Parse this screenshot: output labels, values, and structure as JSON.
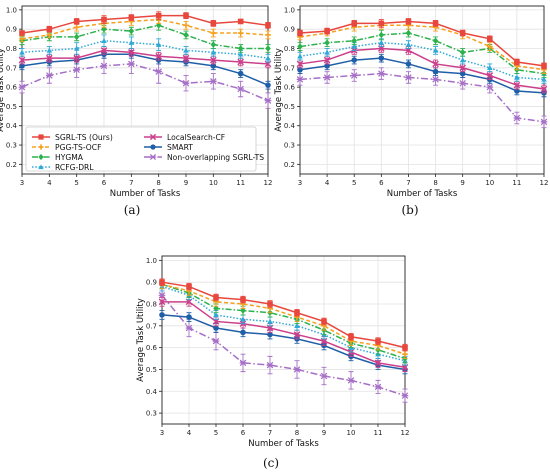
{
  "legend": [
    {
      "name": "SGRL-TS (Ours)",
      "color": "#e8473d",
      "dash": "",
      "marker": "square"
    },
    {
      "name": "PGG-TS-OCF",
      "color": "#f5a01e",
      "dash": "4,2.5",
      "marker": "plus"
    },
    {
      "name": "HYGMA",
      "color": "#2bb24c",
      "dash": "6,2,1.5,2",
      "marker": "diamond"
    },
    {
      "name": "RCFG-DRL",
      "color": "#2fa8d6",
      "dash": "1.5,1.8",
      "marker": "triangle"
    },
    {
      "name": "LocalSearch-CF",
      "color": "#cc3f8a",
      "dash": "",
      "marker": "x"
    },
    {
      "name": "SMART",
      "color": "#1f5fa8",
      "dash": "",
      "marker": "circle"
    },
    {
      "name": "Non-overlapping SGRL-TS",
      "color": "#a66fc7",
      "dash": "7,2.5,1.5,2.5",
      "marker": "star"
    }
  ],
  "chart_data": [
    {
      "type": "line",
      "caption": "(a)",
      "xlabel": "Number of Tasks",
      "ylabel": "Average Task Utility",
      "xlim": [
        3,
        12
      ],
      "ylim": [
        0.15,
        1.02
      ],
      "x": [
        3,
        4,
        5,
        6,
        7,
        8,
        9,
        10,
        11,
        12
      ],
      "xticks": [
        "3",
        "4",
        "5",
        "6",
        "7",
        "8",
        "9",
        "10",
        "11",
        "12"
      ],
      "yticks": [
        "0.2",
        "0.3",
        "0.4",
        "0.5",
        "0.6",
        "0.7",
        "0.8",
        "0.9",
        "1.0"
      ],
      "legend_position": "lower-left",
      "series": [
        {
          "name": "SGRL-TS (Ours)",
          "values": [
            0.88,
            0.9,
            0.94,
            0.95,
            0.96,
            0.97,
            0.97,
            0.93,
            0.94,
            0.92
          ],
          "err": [
            0.01,
            0.015,
            0.015,
            0.02,
            0.015,
            0.02,
            0.015,
            0.015,
            0.01,
            0.015
          ]
        },
        {
          "name": "PGG-TS-OCF",
          "values": [
            0.85,
            0.87,
            0.91,
            0.93,
            0.94,
            0.95,
            0.92,
            0.88,
            0.88,
            0.87
          ],
          "err": [
            0.015,
            0.015,
            0.02,
            0.02,
            0.02,
            0.02,
            0.02,
            0.02,
            0.02,
            0.02
          ]
        },
        {
          "name": "HYGMA",
          "values": [
            0.84,
            0.86,
            0.86,
            0.9,
            0.89,
            0.92,
            0.87,
            0.82,
            0.8,
            0.8
          ],
          "err": [
            0.02,
            0.02,
            0.02,
            0.02,
            0.02,
            0.025,
            0.02,
            0.02,
            0.02,
            0.02
          ]
        },
        {
          "name": "RCFG-DRL",
          "values": [
            0.78,
            0.79,
            0.8,
            0.84,
            0.83,
            0.82,
            0.79,
            0.78,
            0.77,
            0.75
          ],
          "err": [
            0.02,
            0.02,
            0.03,
            0.03,
            0.03,
            0.03,
            0.02,
            0.02,
            0.02,
            0.02
          ]
        },
        {
          "name": "LocalSearch-CF",
          "values": [
            0.74,
            0.75,
            0.75,
            0.79,
            0.78,
            0.76,
            0.75,
            0.74,
            0.73,
            0.72
          ],
          "err": [
            0.02,
            0.02,
            0.02,
            0.02,
            0.02,
            0.02,
            0.02,
            0.02,
            0.02,
            0.02
          ]
        },
        {
          "name": "SMART",
          "values": [
            0.71,
            0.73,
            0.74,
            0.77,
            0.77,
            0.74,
            0.73,
            0.71,
            0.67,
            0.61
          ],
          "err": [
            0.02,
            0.02,
            0.02,
            0.02,
            0.02,
            0.02,
            0.02,
            0.02,
            0.02,
            0.02
          ]
        },
        {
          "name": "Non-overlapping SGRL-TS",
          "values": [
            0.6,
            0.66,
            0.69,
            0.71,
            0.72,
            0.68,
            0.62,
            0.63,
            0.59,
            0.53
          ],
          "err": [
            0.03,
            0.04,
            0.04,
            0.04,
            0.05,
            0.06,
            0.04,
            0.04,
            0.04,
            0.04
          ]
        }
      ]
    },
    {
      "type": "line",
      "caption": "(b)",
      "xlabel": "Number of Tasks",
      "ylabel": "Average Task Utility",
      "xlim": [
        3,
        12
      ],
      "ylim": [
        0.15,
        1.02
      ],
      "x": [
        3,
        4,
        5,
        6,
        7,
        8,
        9,
        10,
        11,
        12
      ],
      "xticks": [
        "3",
        "4",
        "5",
        "6",
        "7",
        "8",
        "9",
        "10",
        "11",
        "12"
      ],
      "yticks": [
        "0.2",
        "0.3",
        "0.4",
        "0.5",
        "0.6",
        "0.7",
        "0.8",
        "0.9",
        "1.0"
      ],
      "series": [
        {
          "name": "SGRL-TS (Ours)",
          "values": [
            0.88,
            0.89,
            0.93,
            0.93,
            0.94,
            0.93,
            0.88,
            0.85,
            0.73,
            0.71
          ],
          "err": [
            0.015,
            0.015,
            0.015,
            0.02,
            0.015,
            0.015,
            0.015,
            0.015,
            0.015,
            0.015
          ]
        },
        {
          "name": "PGG-TS-OCF",
          "values": [
            0.86,
            0.88,
            0.91,
            0.92,
            0.92,
            0.91,
            0.87,
            0.81,
            0.71,
            0.69
          ],
          "err": [
            0.015,
            0.015,
            0.02,
            0.02,
            0.02,
            0.02,
            0.02,
            0.02,
            0.02,
            0.02
          ]
        },
        {
          "name": "HYGMA",
          "values": [
            0.81,
            0.83,
            0.84,
            0.87,
            0.88,
            0.84,
            0.78,
            0.8,
            0.69,
            0.67
          ],
          "err": [
            0.02,
            0.02,
            0.02,
            0.025,
            0.02,
            0.02,
            0.02,
            0.02,
            0.02,
            0.02
          ]
        },
        {
          "name": "RCFG-DRL",
          "values": [
            0.76,
            0.78,
            0.81,
            0.83,
            0.82,
            0.79,
            0.74,
            0.7,
            0.65,
            0.64
          ],
          "err": [
            0.02,
            0.02,
            0.02,
            0.02,
            0.02,
            0.02,
            0.02,
            0.02,
            0.02,
            0.02
          ]
        },
        {
          "name": "LocalSearch-CF",
          "values": [
            0.72,
            0.74,
            0.79,
            0.8,
            0.79,
            0.72,
            0.7,
            0.66,
            0.61,
            0.59
          ],
          "err": [
            0.02,
            0.02,
            0.02,
            0.02,
            0.02,
            0.02,
            0.02,
            0.02,
            0.02,
            0.02
          ]
        },
        {
          "name": "SMART",
          "values": [
            0.69,
            0.71,
            0.74,
            0.75,
            0.72,
            0.68,
            0.67,
            0.64,
            0.58,
            0.57
          ],
          "err": [
            0.02,
            0.02,
            0.02,
            0.02,
            0.02,
            0.02,
            0.02,
            0.02,
            0.02,
            0.02
          ]
        },
        {
          "name": "Non-overlapping SGRL-TS",
          "values": [
            0.64,
            0.65,
            0.66,
            0.67,
            0.65,
            0.64,
            0.62,
            0.6,
            0.44,
            0.42
          ],
          "err": [
            0.03,
            0.03,
            0.03,
            0.03,
            0.03,
            0.03,
            0.03,
            0.03,
            0.03,
            0.03
          ]
        }
      ]
    },
    {
      "type": "line",
      "caption": "(c)",
      "xlabel": "Number of Tasks",
      "ylabel": "Average Task Utility",
      "xlim": [
        3,
        12
      ],
      "ylim": [
        0.25,
        1.02
      ],
      "x": [
        3,
        4,
        5,
        6,
        7,
        8,
        9,
        10,
        11,
        12
      ],
      "xticks": [
        "3",
        "4",
        "5",
        "6",
        "7",
        "8",
        "9",
        "10",
        "11",
        "12"
      ],
      "yticks": [
        "0.3",
        "0.4",
        "0.5",
        "0.6",
        "0.7",
        "0.8",
        "0.9",
        "1.0"
      ],
      "series": [
        {
          "name": "SGRL-TS (Ours)",
          "values": [
            0.9,
            0.88,
            0.83,
            0.82,
            0.8,
            0.76,
            0.72,
            0.65,
            0.63,
            0.6
          ],
          "err": [
            0.015,
            0.015,
            0.015,
            0.015,
            0.015,
            0.015,
            0.015,
            0.015,
            0.015,
            0.015
          ]
        },
        {
          "name": "PGG-TS-OCF",
          "values": [
            0.89,
            0.86,
            0.81,
            0.8,
            0.78,
            0.74,
            0.7,
            0.63,
            0.61,
            0.57
          ],
          "err": [
            0.02,
            0.02,
            0.02,
            0.02,
            0.02,
            0.02,
            0.02,
            0.02,
            0.02,
            0.02
          ]
        },
        {
          "name": "HYGMA",
          "values": [
            0.89,
            0.85,
            0.78,
            0.77,
            0.76,
            0.73,
            0.68,
            0.62,
            0.59,
            0.55
          ],
          "err": [
            0.02,
            0.02,
            0.02,
            0.02,
            0.02,
            0.02,
            0.02,
            0.02,
            0.02,
            0.02
          ]
        },
        {
          "name": "RCFG-DRL",
          "values": [
            0.88,
            0.84,
            0.75,
            0.73,
            0.72,
            0.7,
            0.66,
            0.6,
            0.57,
            0.54
          ],
          "err": [
            0.02,
            0.02,
            0.02,
            0.02,
            0.02,
            0.02,
            0.02,
            0.02,
            0.02,
            0.02
          ]
        },
        {
          "name": "LocalSearch-CF",
          "values": [
            0.81,
            0.81,
            0.72,
            0.71,
            0.69,
            0.66,
            0.63,
            0.58,
            0.53,
            0.51
          ],
          "err": [
            0.02,
            0.02,
            0.02,
            0.02,
            0.02,
            0.02,
            0.02,
            0.02,
            0.02,
            0.02
          ]
        },
        {
          "name": "SMART",
          "values": [
            0.75,
            0.74,
            0.69,
            0.67,
            0.66,
            0.64,
            0.61,
            0.56,
            0.52,
            0.5
          ],
          "err": [
            0.02,
            0.02,
            0.02,
            0.02,
            0.02,
            0.02,
            0.02,
            0.02,
            0.02,
            0.02
          ]
        },
        {
          "name": "Non-overlapping SGRL-TS",
          "values": [
            0.84,
            0.69,
            0.63,
            0.53,
            0.52,
            0.5,
            0.47,
            0.45,
            0.42,
            0.38
          ],
          "err": [
            0.03,
            0.04,
            0.04,
            0.04,
            0.04,
            0.04,
            0.04,
            0.04,
            0.03,
            0.03
          ]
        }
      ]
    }
  ]
}
